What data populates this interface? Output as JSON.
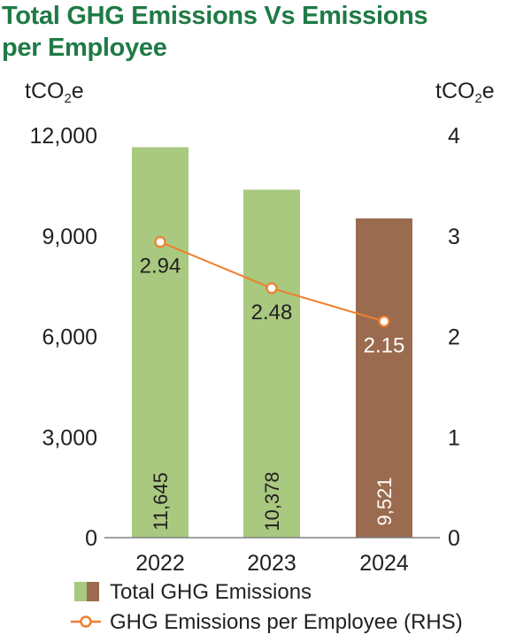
{
  "title": {
    "line1": "Total GHG Emissions Vs Emissions",
    "line2": "per Employee"
  },
  "units": {
    "left": {
      "base": "tCO",
      "sub": "2",
      "suffix": "e"
    },
    "right": {
      "base": "tCO",
      "sub": "2",
      "suffix": "e"
    }
  },
  "chart_data": {
    "type": "bar",
    "categories": [
      "2022",
      "2023",
      "2024"
    ],
    "series": [
      {
        "name": "Total GHG Emissions",
        "type": "bar",
        "axis": "left",
        "values": [
          11645,
          10378,
          9521
        ],
        "labels": [
          "11,645",
          "10,378",
          "9,521"
        ]
      },
      {
        "name": "GHG Emissions per Employee (RHS)",
        "type": "line",
        "axis": "right",
        "values": [
          2.94,
          2.48,
          2.15
        ],
        "labels": [
          "2.94",
          "2.48",
          "2.15"
        ]
      }
    ],
    "y_left": {
      "range": [
        0,
        12000
      ],
      "ticks": [
        "0",
        "3,000",
        "6,000",
        "9,000",
        "12,000"
      ],
      "tick_values": [
        0,
        3000,
        6000,
        9000,
        12000
      ]
    },
    "y_right": {
      "range": [
        0,
        4
      ],
      "ticks": [
        "0",
        "1",
        "2",
        "3",
        "4"
      ],
      "tick_values": [
        0,
        1,
        2,
        3,
        4
      ]
    },
    "grid": false,
    "legend_position": "bottom"
  },
  "colors": {
    "title": "#1f7a45",
    "bar_green": "#a8c97f",
    "bar_brown": "#9b6b4f",
    "line_orange": "#f07f2b",
    "axis": "#808080",
    "text": "#231f20",
    "label_on_brown": "#ffffff"
  },
  "legend": {
    "bar_label": "Total GHG Emissions",
    "line_label": "GHG Emissions per Employee (RHS)"
  }
}
